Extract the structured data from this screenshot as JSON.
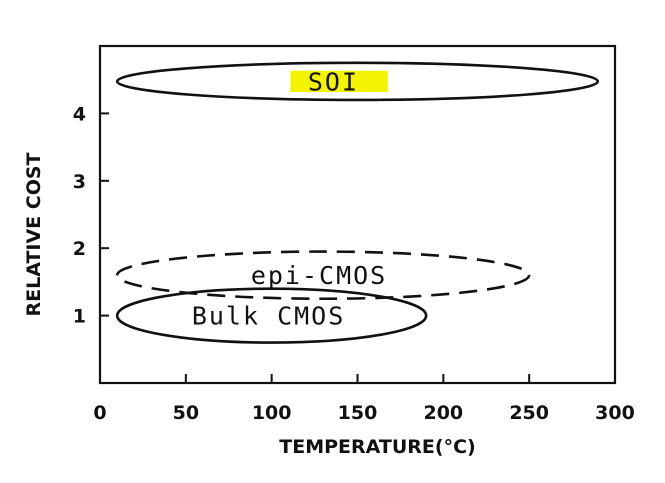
{
  "chart_data": {
    "type": "scatter",
    "xlabel": "TEMPERATURE(°C)",
    "ylabel": "RELATIVE COST",
    "xlim": [
      0,
      300
    ],
    "ylim": [
      0,
      5
    ],
    "x_ticks": [
      0,
      50,
      100,
      150,
      200,
      250,
      300
    ],
    "x_tick_labels": [
      "0",
      "50",
      "100",
      "150",
      "200",
      "250",
      "300"
    ],
    "y_ticks": [
      1,
      2,
      3,
      4
    ],
    "y_tick_labels": [
      "1",
      "2",
      "3",
      "4"
    ],
    "grid": false,
    "regions": [
      {
        "name": "SOI",
        "label": "SOI",
        "x_range": [
          10,
          290
        ],
        "y_range": [
          4.2,
          4.75
        ],
        "line_style": "solid",
        "highlight": "#f4f400"
      },
      {
        "name": "epi-CMOS",
        "label": "epi-CMOS",
        "x_range": [
          10,
          250
        ],
        "y_range": [
          1.25,
          1.95
        ],
        "line_style": "dashed"
      },
      {
        "name": "Bulk CMOS",
        "label": "Bulk CMOS",
        "x_range": [
          10,
          190
        ],
        "y_range": [
          0.6,
          1.4
        ],
        "line_style": "solid"
      }
    ]
  }
}
